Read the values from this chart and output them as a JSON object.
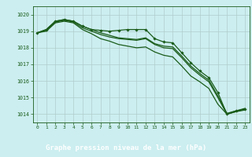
{
  "title": "Graphe pression niveau de la mer (hPa)",
  "background_color": "#cceef0",
  "plot_bg_color": "#cceef0",
  "xlabel_bg_color": "#2d6a2d",
  "line_color": "#1a5c1a",
  "grid_color": "#b0cccc",
  "xlim": [
    -0.5,
    23.5
  ],
  "ylim": [
    1013.5,
    1020.5
  ],
  "yticks": [
    1014,
    1015,
    1016,
    1017,
    1018,
    1019,
    1020
  ],
  "xticks": [
    0,
    1,
    2,
    3,
    4,
    5,
    6,
    7,
    8,
    9,
    10,
    11,
    12,
    13,
    14,
    15,
    16,
    17,
    18,
    19,
    20,
    21,
    22,
    23
  ],
  "series": [
    {
      "y": [
        1018.9,
        1019.1,
        1019.6,
        1019.7,
        1019.6,
        1019.3,
        1019.1,
        1019.05,
        1019.0,
        1019.05,
        1019.1,
        1019.1,
        1019.1,
        1018.55,
        1018.35,
        1018.3,
        1017.7,
        1017.1,
        1016.6,
        1016.2,
        1015.3,
        1014.0,
        1014.2,
        1014.3
      ],
      "has_markers": true
    },
    {
      "y": [
        1018.9,
        1019.05,
        1019.55,
        1019.65,
        1019.55,
        1019.2,
        1019.0,
        1018.8,
        1018.65,
        1018.55,
        1018.5,
        1018.45,
        1018.55,
        1018.2,
        1018.0,
        1017.95,
        1017.4,
        1016.8,
        1016.35,
        1015.95,
        1015.0,
        1014.0,
        1014.15,
        1014.25
      ],
      "has_markers": false
    },
    {
      "y": [
        1018.9,
        1019.0,
        1019.5,
        1019.6,
        1019.5,
        1019.1,
        1018.85,
        1018.55,
        1018.4,
        1018.2,
        1018.1,
        1018.0,
        1018.05,
        1017.75,
        1017.55,
        1017.45,
        1016.9,
        1016.3,
        1015.95,
        1015.55,
        1014.6,
        1014.0,
        1014.15,
        1014.3
      ],
      "has_markers": false
    },
    {
      "y": [
        1018.9,
        1019.1,
        1019.6,
        1019.7,
        1019.6,
        1019.3,
        1019.1,
        1018.9,
        1018.75,
        1018.6,
        1018.55,
        1018.5,
        1018.6,
        1018.25,
        1018.1,
        1018.05,
        1017.5,
        1016.9,
        1016.45,
        1016.05,
        1015.1,
        1014.05,
        1014.2,
        1014.35
      ],
      "has_markers": false
    }
  ]
}
